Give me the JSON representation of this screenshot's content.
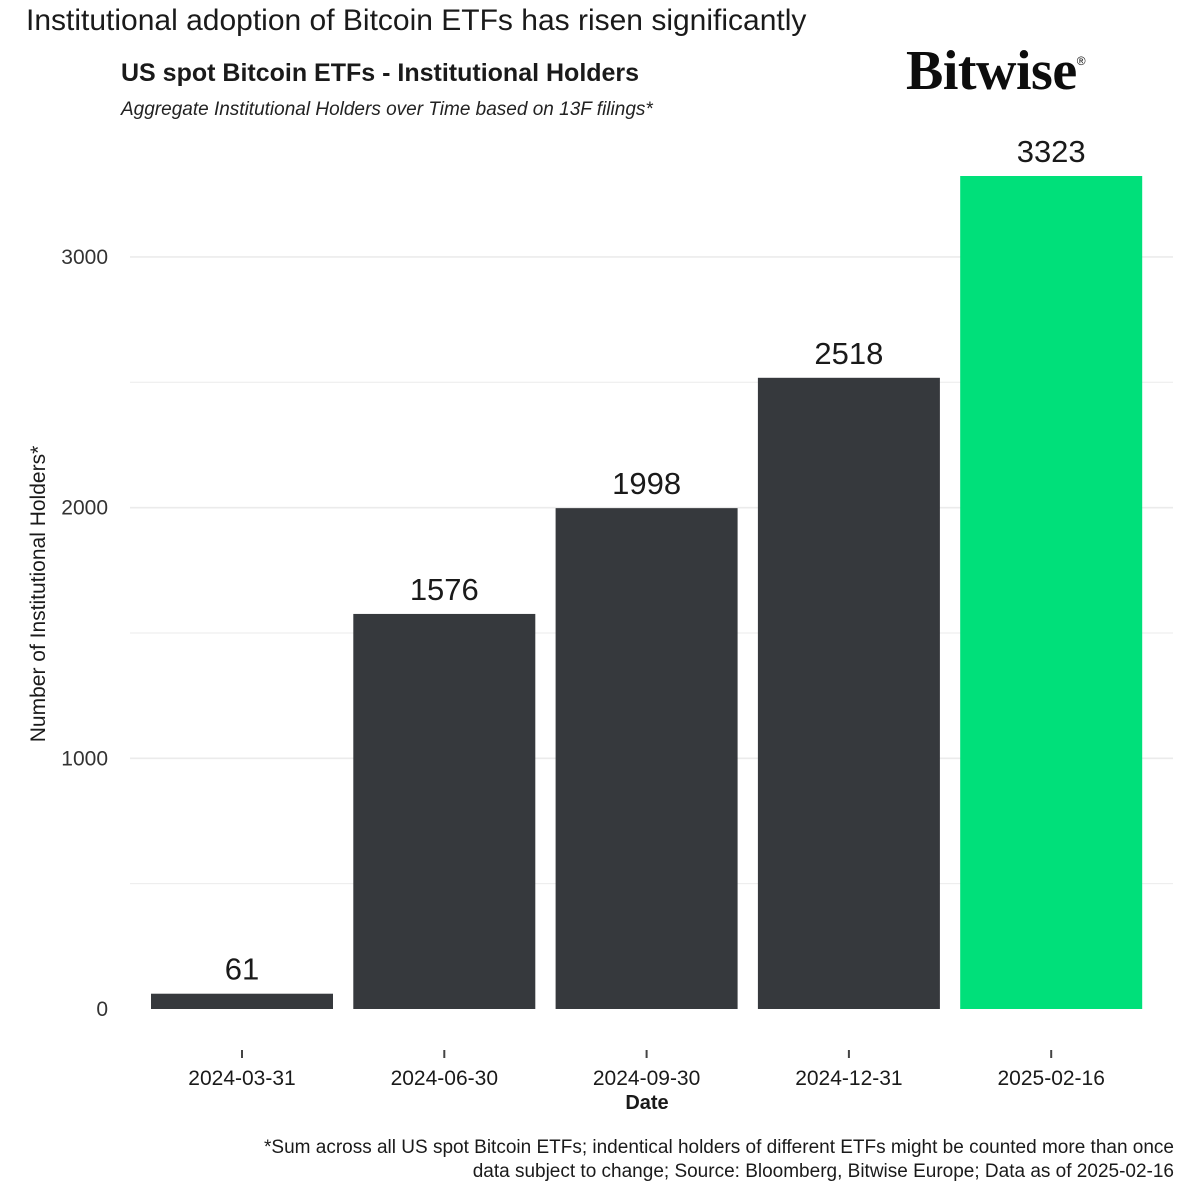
{
  "headline": "Institutional adoption of Bitcoin ETFs has risen significantly",
  "brand": {
    "name": "Bitwise",
    "mark": "®"
  },
  "colors": {
    "bar_default": "#36393d",
    "bar_highlight": "#00e07a",
    "gridline": "#ebebeb",
    "text": "#1a1a1a"
  },
  "chart_data": {
    "type": "bar",
    "title": "US spot Bitcoin ETFs - Institutional Holders",
    "subtitle": "Aggregate Institutional Holders over Time based on 13F filings*",
    "xlabel": "Date",
    "ylabel": "Number of Institutional Holders*",
    "categories": [
      "2024-03-31",
      "2024-06-30",
      "2024-09-30",
      "2024-12-31",
      "2025-02-16"
    ],
    "values": [
      61,
      1576,
      1998,
      2518,
      3323
    ],
    "data_labels": [
      "61",
      "1576",
      "1998",
      "2518",
      "3323"
    ],
    "highlight_index": 4,
    "ylim": [
      0,
      3323
    ],
    "yticks": [
      0,
      1000,
      2000,
      3000
    ],
    "ytick_labels": [
      "0",
      "1000",
      "2000",
      "3000"
    ],
    "grid": true,
    "legend": "none"
  },
  "footnote": {
    "line1": "*Sum across all US spot Bitcoin ETFs; indentical holders of different ETFs might be counted more than once",
    "line2": "data subject to change; Source: Bloomberg, Bitwise Europe; Data as of 2025-02-16"
  }
}
